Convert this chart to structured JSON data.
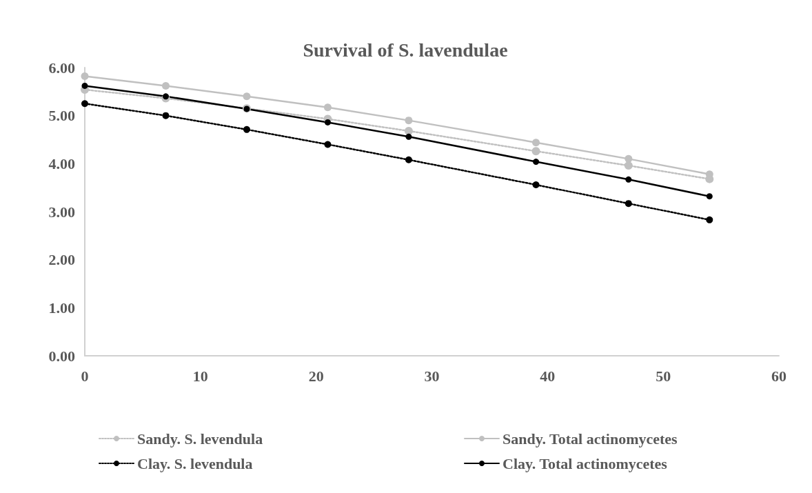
{
  "chart_data": {
    "type": "line",
    "title": "Survival of S. lavendulae",
    "x": [
      0,
      7,
      14,
      21,
      28,
      39,
      47,
      54
    ],
    "xlim": [
      0,
      60
    ],
    "xticks": [
      0,
      10,
      20,
      30,
      40,
      50,
      60
    ],
    "ylim": [
      0,
      6
    ],
    "yticks": [
      {
        "value": 0,
        "label": "0.00"
      },
      {
        "value": 1,
        "label": "1.00"
      },
      {
        "value": 2,
        "label": "2.00"
      },
      {
        "value": 3,
        "label": "3.00"
      },
      {
        "value": 4,
        "label": "4.00"
      },
      {
        "value": 5,
        "label": "5.00"
      },
      {
        "value": 6,
        "label": "6.00"
      }
    ],
    "grid": false,
    "legend": "bottom",
    "marker": "circle",
    "series": [
      {
        "name": "Sandy. S. levendula",
        "color": "#c0c0c0",
        "line_style": "dotted",
        "values": [
          5.54,
          5.36,
          5.15,
          4.93,
          4.68,
          4.26,
          3.96,
          3.68
        ]
      },
      {
        "name": "Sandy. Total actinomycetes",
        "color": "#c0c0c0",
        "line_style": "solid",
        "values": [
          5.82,
          5.62,
          5.4,
          5.17,
          4.9,
          4.44,
          4.1,
          3.78
        ]
      },
      {
        "name": "Clay. S. levendula",
        "color": "#000000",
        "line_style": "dotted",
        "values": [
          5.25,
          5.0,
          4.71,
          4.4,
          4.08,
          3.56,
          3.17,
          2.83
        ]
      },
      {
        "name": "Clay. Total actinomycetes",
        "color": "#000000",
        "line_style": "solid",
        "values": [
          5.62,
          5.4,
          5.14,
          4.86,
          4.56,
          4.04,
          3.67,
          3.32
        ]
      }
    ]
  }
}
